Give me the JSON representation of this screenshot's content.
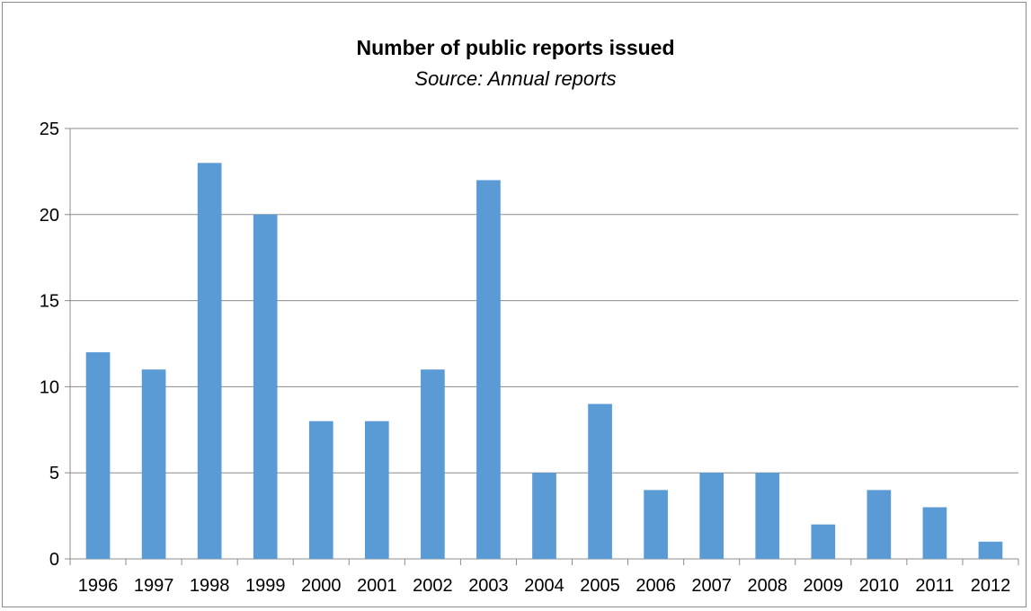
{
  "colors": {
    "bar": "#5b9bd5",
    "gridline": "#8c8c8c",
    "axis": "#8c8c8c",
    "border": "#8c8c8c",
    "background": "#ffffff"
  },
  "chart_data": {
    "type": "bar",
    "title": "Number of public reports issued",
    "subtitle": "Source: Annual reports",
    "xlabel": "",
    "ylabel": "",
    "categories": [
      "1996",
      "1997",
      "1998",
      "1999",
      "2000",
      "2001",
      "2002",
      "2003",
      "2004",
      "2005",
      "2006",
      "2007",
      "2008",
      "2009",
      "2010",
      "2011",
      "2012"
    ],
    "values": [
      12,
      11,
      23,
      20,
      8,
      8,
      11,
      22,
      5,
      9,
      4,
      5,
      5,
      2,
      4,
      3,
      1
    ],
    "ylim": [
      0,
      25
    ],
    "yticks": [
      0,
      5,
      10,
      15,
      20,
      25
    ],
    "grid": true,
    "legend": "none"
  }
}
